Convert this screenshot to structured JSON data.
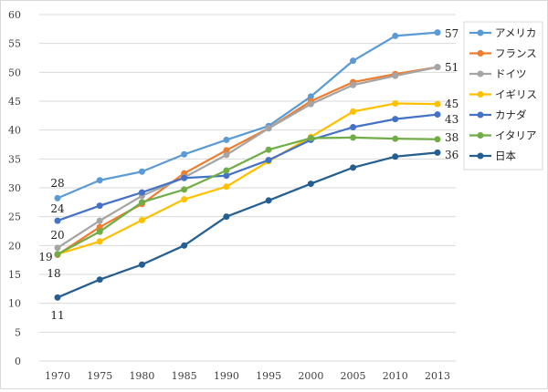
{
  "chart_data": {
    "type": "line",
    "title": "",
    "xlabel": "",
    "ylabel": "",
    "categories": [
      "1970",
      "1975",
      "1980",
      "1985",
      "1990",
      "1995",
      "2000",
      "2005",
      "2010",
      "2013"
    ],
    "ylim": [
      0,
      60
    ],
    "yticks": [
      0,
      5,
      10,
      15,
      20,
      25,
      30,
      35,
      40,
      45,
      50,
      55,
      60
    ],
    "grid": "horizontal",
    "legend_position": "right",
    "series": [
      {
        "name": "アメリカ",
        "color": "#5b9bd5",
        "end_label": "57",
        "start_label": "28",
        "values": [
          28.2,
          31.3,
          32.8,
          35.8,
          38.3,
          40.7,
          45.8,
          52.0,
          56.3,
          56.9
        ]
      },
      {
        "name": "フランス",
        "color": "#ed7d31",
        "end_label": "",
        "start_label": "",
        "values": [
          18.4,
          23.2,
          27.2,
          32.5,
          36.5,
          40.3,
          45.0,
          48.3,
          49.7,
          50.9
        ]
      },
      {
        "name": "ドイツ",
        "color": "#a5a5a5",
        "end_label": "51",
        "start_label": "20",
        "values": [
          19.6,
          24.3,
          28.6,
          31.8,
          35.7,
          40.3,
          44.5,
          47.8,
          49.4,
          50.9
        ]
      },
      {
        "name": "イギリス",
        "color": "#ffc000",
        "end_label": "45",
        "start_label": "18",
        "values": [
          18.5,
          20.7,
          24.4,
          28.0,
          30.2,
          34.6,
          38.8,
          43.2,
          44.6,
          44.5
        ]
      },
      {
        "name": "カナダ",
        "color": "#4472c4",
        "end_label": "43",
        "start_label": "24",
        "values": [
          24.3,
          26.9,
          29.2,
          31.7,
          32.1,
          34.8,
          38.3,
          40.5,
          41.9,
          42.7
        ]
      },
      {
        "name": "イタリア",
        "color": "#70ad47",
        "end_label": "38",
        "start_label": "19",
        "values": [
          18.5,
          22.4,
          27.5,
          29.7,
          33.0,
          36.6,
          38.6,
          38.7,
          38.5,
          38.4
        ]
      },
      {
        "name": "日本",
        "color": "#255e91",
        "end_label": "36",
        "start_label": "11",
        "values": [
          11.0,
          14.1,
          16.7,
          20.0,
          25.0,
          27.8,
          30.7,
          33.5,
          35.4,
          36.1
        ]
      }
    ]
  }
}
